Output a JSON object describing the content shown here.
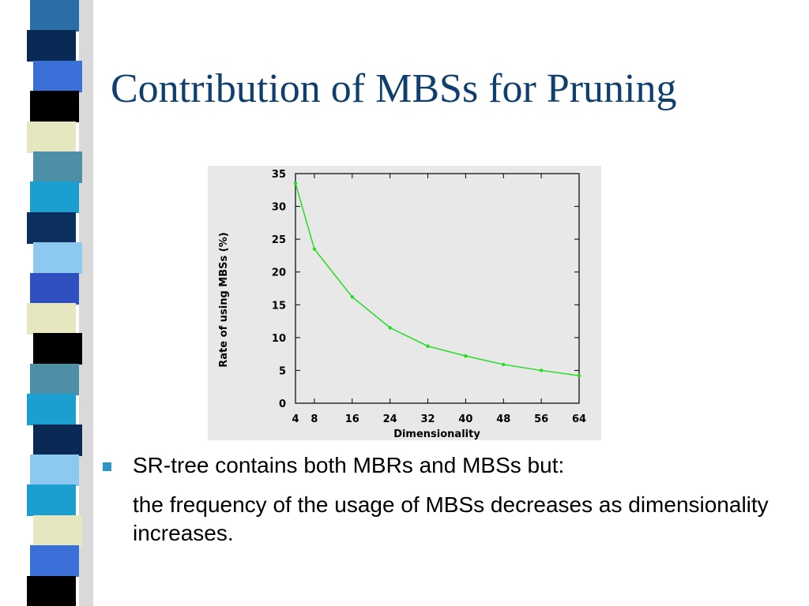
{
  "slide": {
    "title": "Contribution of MBSs for Pruning",
    "bullet": "SR-tree contains both MBRs and MBSs but:",
    "sub_text": "the frequency of the usage of MBSs decreases as dimensionality increases."
  },
  "colors": {
    "title": "#0f3f6e",
    "bullet": "#2f93c9",
    "series": "#22dd22",
    "plot_bg": "#e8e8e8",
    "strip": [
      "#2a6ea8",
      "#0a2a55",
      "#3a70d8",
      "#000000",
      "#e6e6c0",
      "#4e8fa8",
      "#1a9fd0",
      "#0b3060",
      "#8cc8f0",
      "#3050c0",
      "#e6e6c0",
      "#000000",
      "#4e8fa8",
      "#1a9fd0",
      "#0a2a55",
      "#8cc8f0",
      "#1a9fd0",
      "#e6e6c0",
      "#3a70d8",
      "#000000"
    ]
  },
  "chart_data": {
    "type": "line",
    "xlabel": "Dimensionality",
    "ylabel": "Rate of using MBSs (%)",
    "x": [
      4,
      8,
      16,
      24,
      32,
      40,
      48,
      56,
      64
    ],
    "y": [
      33.5,
      23.5,
      16.2,
      11.5,
      8.7,
      7.2,
      5.9,
      5.0,
      4.2
    ],
    "xticks": [
      4,
      8,
      16,
      24,
      32,
      40,
      48,
      56,
      64
    ],
    "yticks": [
      0,
      5,
      10,
      15,
      20,
      25,
      30,
      35
    ],
    "xlim": [
      4,
      64
    ],
    "ylim": [
      0,
      35
    ],
    "grid": false,
    "legend": "none"
  }
}
